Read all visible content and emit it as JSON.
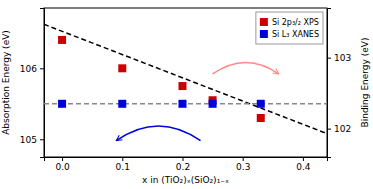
{
  "chart_data": {
    "type": "scatter",
    "xlabel": "x in (TiO₂)ₓ(SiO₂)₁₋ₓ",
    "ylabel": "Absorption Energy (eV)",
    "y2label": "Binding Energy (eV)",
    "xlim": [
      -0.03,
      0.44
    ],
    "xticks": [
      {
        "value": 0.0,
        "label": "0.0"
      },
      0.1,
      0.2,
      0.3,
      0.4
    ],
    "ylim": [
      104.75,
      106.85
    ],
    "yticks": [
      105,
      106
    ],
    "y2lim": [
      101.6,
      103.7
    ],
    "y2ticks": [
      102,
      103
    ],
    "grid": false,
    "legend": "upper right",
    "series": [
      {
        "name": "Si 2p₃/₂ XPS",
        "type": "scatter",
        "marker": "square",
        "color": "#cc0000",
        "x": [
          0.0,
          0.1,
          0.2,
          0.25,
          0.33
        ],
        "values": [
          106.4,
          106.0,
          105.75,
          105.55,
          105.3
        ]
      },
      {
        "name": "Si L₃ XANES",
        "type": "scatter",
        "marker": "square",
        "color": "#0000dd",
        "x": [
          0.0,
          0.1,
          0.2,
          0.25,
          0.33
        ],
        "values": [
          105.5,
          105.5,
          105.5,
          105.5,
          105.5
        ]
      },
      {
        "type": "line",
        "line_style": "dashed",
        "color": "#000000",
        "x": [
          -0.03,
          0.44
        ],
        "values": [
          106.62,
          105.08
        ]
      },
      {
        "type": "hline",
        "line_style": "dashed",
        "color": "#888888",
        "values": [
          105.5
        ]
      }
    ],
    "arrows": [
      {
        "x": [
          0.23,
          0.09
        ],
        "y": [
          104.98,
          104.98
        ],
        "color": "#0000dd"
      },
      {
        "x": [
          0.25,
          0.36
        ],
        "y": [
          105.92,
          105.92
        ],
        "color": "#ff8888"
      }
    ]
  }
}
